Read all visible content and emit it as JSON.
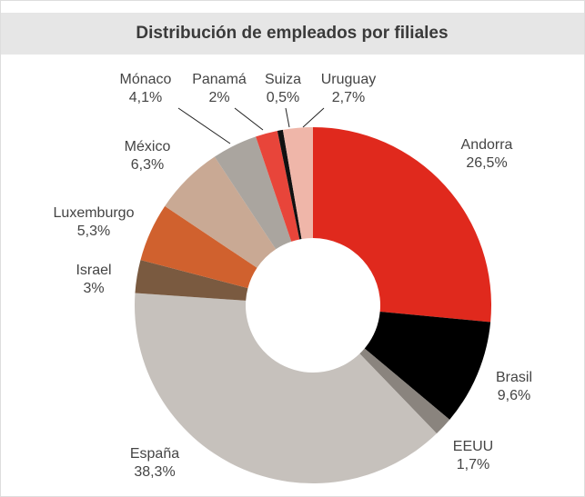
{
  "chart_data": {
    "type": "donut",
    "title": "Distribución de empleados por filiales",
    "categories": [
      "Andorra",
      "Brasil",
      "EEUU",
      "España",
      "Israel",
      "Luxemburgo",
      "México",
      "Mónaco",
      "Panamá",
      "Suiza",
      "Uruguay"
    ],
    "values": [
      26.5,
      9.6,
      1.7,
      38.3,
      3,
      5.3,
      6.3,
      4.1,
      2,
      0.5,
      2.7
    ],
    "value_labels": [
      "26,5%",
      "9,6%",
      "1,7%",
      "38,3%",
      "3%",
      "5,3%",
      "6,3%",
      "4,1%",
      "2%",
      "0,5%",
      "2,7%"
    ],
    "colors": [
      "#e0291d",
      "#000000",
      "#8a847e",
      "#c6c1bc",
      "#7a5a40",
      "#d0612e",
      "#c9a994",
      "#aaa59f",
      "#e8453a",
      "#111111",
      "#efb6a9"
    ]
  }
}
